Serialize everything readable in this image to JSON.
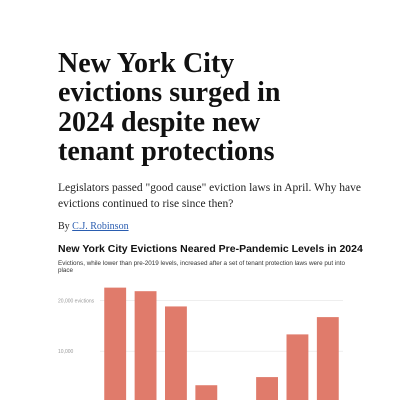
{
  "headline": [
    "New York City",
    "evictions surged in",
    "2024 despite new",
    "tenant protections"
  ],
  "dek": [
    "Legislators passed \"good cause\" eviction laws in April. Why have",
    "evictions continued to rise since then?"
  ],
  "byline": {
    "prefix": "By",
    "author": "C.J. Robinson"
  },
  "chart_data": {
    "type": "bar",
    "title": "New York City Evictions Neared Pre-Pandemic Levels in 2024",
    "subtitle": [
      "Evictions, while lower than pre-2019 levels, increased after a set of tenant protection laws were put into",
      "place"
    ],
    "categories": [
      null,
      null,
      null,
      null,
      null,
      null,
      null,
      null
    ],
    "values": [
      22500,
      21800,
      18800,
      3300,
      300,
      4900,
      13300,
      16700
    ],
    "color": "#e07b6b",
    "ylim": [
      0,
      24000
    ],
    "yticks": [
      {
        "value": 20000,
        "label": "20,000 evictions"
      },
      {
        "value": 10000,
        "label": "10,000"
      }
    ],
    "grid": true
  }
}
